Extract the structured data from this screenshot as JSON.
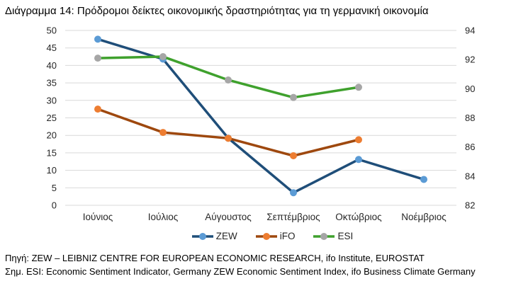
{
  "title": "Διάγραμμα 14: Πρόδρομοι δείκτες οικονομικής δραστηριότητας για τη γερμανική οικονομία",
  "footnotes": {
    "source": "Πηγή: ZEW – LEIBNIZ CENTRE FOR EUROPEAN ECONOMIC RESEARCH, ifo Institute, EUROSTAT",
    "note": "Σημ. ESI: Economic Sentiment Indicator, Germany ZEW Economic Sentiment Index, ifo Business Climate Germany"
  },
  "chart_data": {
    "type": "line",
    "title": "Διάγραμμα 14: Πρόδρομοι δείκτες οικονομικής δραστηριότητας για τη γερμανική οικονομία",
    "categories": [
      "Ιούνιος",
      "Ιούλιος",
      "Αύγουστος",
      "Σεπτέμβριος",
      "Οκτώβριος",
      "Νοέμβριος"
    ],
    "left_axis": {
      "min": 0,
      "max": 50,
      "step": 5,
      "ticks": [
        0,
        5,
        10,
        15,
        20,
        25,
        30,
        35,
        40,
        45,
        50
      ]
    },
    "right_axis": {
      "min": 82,
      "max": 94,
      "step": 2,
      "ticks": [
        82,
        84,
        86,
        88,
        90,
        92,
        94
      ]
    },
    "grid": "horizontal",
    "legend_position": "bottom",
    "colors": {
      "grid": "#D9D9D9",
      "text": "#262626"
    },
    "series": [
      {
        "name": "ZEW",
        "axis": "left",
        "line_color": "#1F4E79",
        "marker_color": "#5B9BD5",
        "values": [
          47.5,
          41.8,
          19.2,
          3.6,
          13.1,
          7.4
        ]
      },
      {
        "name": "iFO",
        "axis": "right",
        "line_color": "#9E480E",
        "marker_color": "#ED7D31",
        "values": [
          88.6,
          87.0,
          86.6,
          85.4,
          86.5,
          null
        ]
      },
      {
        "name": "ESI",
        "axis": "right",
        "line_color": "#3FA12D",
        "marker_color": "#A6A6A6",
        "values": [
          92.1,
          92.2,
          90.6,
          89.4,
          90.1,
          null
        ]
      }
    ]
  }
}
